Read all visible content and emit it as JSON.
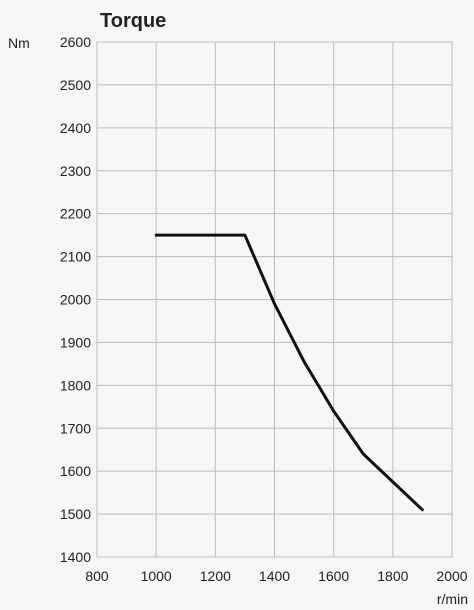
{
  "chart_data": {
    "type": "line",
    "title": "Torque",
    "ylabel": "Nm",
    "xlabel": "r/min",
    "xlim": [
      800,
      2000
    ],
    "ylim": [
      1400,
      2600
    ],
    "xticks": [
      800,
      1000,
      1200,
      1400,
      1600,
      1800,
      2000
    ],
    "yticks": [
      1400,
      1500,
      1600,
      1700,
      1800,
      1900,
      2000,
      2100,
      2200,
      2300,
      2400,
      2500,
      2600
    ],
    "grid": true,
    "series": [
      {
        "x": [
          1000,
          1300,
          1400,
          1500,
          1600,
          1700,
          1800,
          1900
        ],
        "y": [
          2150,
          2150,
          1990,
          1855,
          1740,
          1640,
          1575,
          1510
        ]
      }
    ],
    "colors": {
      "line": "#111111",
      "grid": "#bdbdbd",
      "background": "#f6f6f4"
    }
  }
}
